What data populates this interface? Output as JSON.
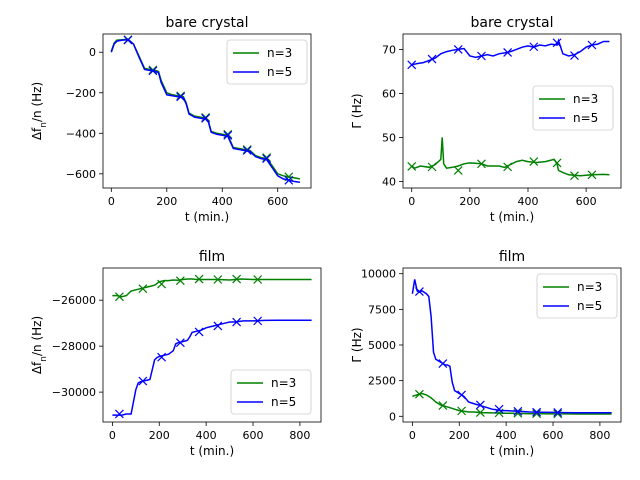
{
  "colors": {
    "n3": "#008000",
    "n5": "#0000ff"
  },
  "chart_data": [
    {
      "type": "line",
      "title": "bare crystal",
      "xlabel": "t (min.)",
      "ylabel_main": "Δf",
      "ylabel_sub": "n",
      "ylabel_tail": "/n (Hz)",
      "xlim": [
        -30,
        720
      ],
      "ylim": [
        -670,
        90
      ],
      "xticks": [
        0,
        200,
        400,
        600
      ],
      "yticks": [
        -600,
        -400,
        -200,
        0
      ],
      "legend_position": "upper right",
      "series": [
        {
          "name": "n=3",
          "color": "#008000",
          "x": [
            0,
            10,
            20,
            40,
            60,
            80,
            100,
            120,
            140,
            160,
            170,
            180,
            200,
            220,
            240,
            260,
            270,
            280,
            300,
            320,
            340,
            350,
            360,
            380,
            400,
            420,
            430,
            440,
            460,
            480,
            500,
            520,
            540,
            560,
            580,
            600,
            620,
            640,
            660,
            680
          ],
          "y": [
            5,
            45,
            60,
            62,
            65,
            40,
            -20,
            -80,
            -85,
            -90,
            -95,
            -140,
            -200,
            -210,
            -215,
            -220,
            -250,
            -300,
            -315,
            -320,
            -325,
            -340,
            -390,
            -400,
            -405,
            -410,
            -440,
            -470,
            -475,
            -480,
            -485,
            -510,
            -520,
            -525,
            -560,
            -600,
            -610,
            -615,
            -620,
            -625
          ],
          "markers_x": [
            60,
            150,
            250,
            340,
            420,
            490,
            560,
            640
          ],
          "markers_y": [
            62,
            -87,
            -215,
            -322,
            -405,
            -480,
            -520,
            -615
          ]
        },
        {
          "name": "n=5",
          "color": "#0000ff",
          "x": [
            0,
            10,
            20,
            40,
            60,
            80,
            100,
            120,
            140,
            160,
            170,
            180,
            200,
            220,
            240,
            260,
            270,
            280,
            300,
            320,
            340,
            350,
            360,
            380,
            400,
            420,
            430,
            440,
            460,
            480,
            500,
            520,
            540,
            560,
            580,
            600,
            620,
            640,
            660,
            680
          ],
          "y": [
            0,
            40,
            55,
            60,
            62,
            40,
            -25,
            -85,
            -90,
            -95,
            -100,
            -150,
            -210,
            -215,
            -220,
            -225,
            -255,
            -305,
            -320,
            -325,
            -330,
            -345,
            -395,
            -405,
            -410,
            -415,
            -445,
            -475,
            -480,
            -485,
            -490,
            -515,
            -525,
            -530,
            -570,
            -610,
            -625,
            -632,
            -638,
            -642
          ],
          "markers_x": [
            60,
            150,
            250,
            340,
            420,
            490,
            560,
            640
          ],
          "markers_y": [
            60,
            -92,
            -220,
            -326,
            -410,
            -485,
            -525,
            -632
          ]
        }
      ]
    },
    {
      "type": "line",
      "title": "bare crystal",
      "xlabel": "t (min.)",
      "ylabel_main": "Γ (Hz)",
      "xlim": [
        -30,
        720
      ],
      "ylim": [
        38.5,
        73.5
      ],
      "xticks": [
        0,
        200,
        400,
        600
      ],
      "yticks": [
        40,
        50,
        60,
        70
      ],
      "legend_position": "center right",
      "series": [
        {
          "name": "n=3",
          "color": "#008000",
          "x": [
            0,
            10,
            30,
            60,
            80,
            100,
            105,
            110,
            120,
            140,
            160,
            180,
            200,
            240,
            260,
            300,
            320,
            360,
            380,
            400,
            430,
            460,
            490,
            500,
            505,
            520,
            540,
            580,
            620,
            660,
            680
          ],
          "y": [
            43.5,
            43,
            43.5,
            43.2,
            43.8,
            45,
            50,
            44,
            43,
            43.2,
            43.5,
            44,
            44.2,
            44,
            43.5,
            43.5,
            43.2,
            44.5,
            44.8,
            44.5,
            44.3,
            44.5,
            45,
            44,
            42.5,
            42,
            41.5,
            41.3,
            41.5,
            41.6,
            41.5
          ],
          "markers_x": [
            0,
            70,
            160,
            240,
            330,
            420,
            500,
            560,
            620
          ],
          "markers_y": [
            43.4,
            43.3,
            42.5,
            44.0,
            43.3,
            44.5,
            44.2,
            41.3,
            41.5
          ]
        },
        {
          "name": "n=5",
          "color": "#0000ff",
          "x": [
            0,
            20,
            40,
            60,
            80,
            100,
            120,
            140,
            160,
            180,
            200,
            220,
            240,
            260,
            280,
            300,
            320,
            340,
            360,
            380,
            400,
            420,
            440,
            460,
            480,
            500,
            505,
            520,
            540,
            560,
            580,
            600,
            620,
            640,
            660,
            680
          ],
          "y": [
            66.5,
            66.8,
            67,
            67.5,
            68,
            69,
            69.5,
            69.8,
            70,
            70.2,
            68.5,
            68.2,
            68.5,
            68.8,
            68.5,
            69,
            69.2,
            69.5,
            70,
            70.5,
            70.8,
            70.5,
            71,
            70.8,
            71.2,
            71,
            72,
            69,
            68.5,
            68.8,
            69.5,
            70.5,
            71,
            71.2,
            71.8,
            71.8
          ],
          "markers_x": [
            0,
            70,
            160,
            240,
            330,
            420,
            500,
            560,
            620
          ],
          "markers_y": [
            66.5,
            67.8,
            70,
            68.5,
            69.3,
            70.6,
            71.5,
            68.6,
            71.0
          ]
        }
      ]
    },
    {
      "type": "line",
      "title": "film",
      "xlabel": "t (min.)",
      "ylabel_main": "Δf",
      "ylabel_sub": "n",
      "ylabel_tail": "/n (Hz)",
      "xlim": [
        -40,
        890
      ],
      "ylim": [
        -31300,
        -24600
      ],
      "xticks": [
        0,
        200,
        400,
        600,
        800
      ],
      "yticks": [
        -30000,
        -28000,
        -26000
      ],
      "legend_position": "lower right",
      "series": [
        {
          "name": "n=3",
          "color": "#008000",
          "x": [
            0,
            20,
            40,
            60,
            80,
            100,
            120,
            140,
            160,
            180,
            200,
            220,
            240,
            260,
            280,
            300,
            320,
            340,
            360,
            380,
            400,
            450,
            500,
            550,
            600,
            650,
            700,
            750,
            800,
            850
          ],
          "y": [
            -25800,
            -25800,
            -25850,
            -25800,
            -25600,
            -25550,
            -25500,
            -25450,
            -25400,
            -25350,
            -25200,
            -25150,
            -25150,
            -25120,
            -25130,
            -25100,
            -25080,
            -25080,
            -25100,
            -25100,
            -25100,
            -25100,
            -25120,
            -25080,
            -25100,
            -25100,
            -25100,
            -25100,
            -25100,
            -25100
          ],
          "markers_x": [
            30,
            130,
            210,
            290,
            370,
            450,
            530,
            620
          ],
          "markers_y": [
            -25850,
            -25500,
            -25300,
            -25150,
            -25080,
            -25100,
            -25080,
            -25100
          ]
        },
        {
          "name": "n=5",
          "color": "#0000ff",
          "x": [
            0,
            20,
            40,
            60,
            80,
            100,
            110,
            120,
            140,
            160,
            180,
            190,
            200,
            220,
            240,
            260,
            270,
            280,
            300,
            320,
            330,
            340,
            360,
            380,
            400,
            420,
            440,
            460,
            480,
            500,
            520,
            560,
            600,
            650,
            700,
            750,
            800,
            850
          ],
          "y": [
            -31000,
            -31000,
            -31000,
            -30950,
            -30950,
            -29900,
            -29600,
            -29550,
            -29500,
            -29450,
            -28600,
            -28500,
            -28450,
            -28400,
            -28350,
            -28200,
            -27900,
            -27850,
            -27800,
            -27750,
            -27600,
            -27400,
            -27350,
            -27300,
            -27200,
            -27150,
            -27100,
            -27050,
            -27000,
            -26950,
            -26950,
            -26900,
            -26900,
            -26880,
            -26870,
            -26870,
            -26870,
            -26870
          ],
          "markers_x": [
            30,
            130,
            210,
            290,
            370,
            450,
            530,
            620
          ],
          "markers_y": [
            -30950,
            -29520,
            -28480,
            -27850,
            -27380,
            -27120,
            -26950,
            -26900
          ]
        }
      ]
    },
    {
      "type": "line",
      "title": "film",
      "xlabel": "t (min.)",
      "ylabel_main": "Γ (Hz)",
      "xlim": [
        -40,
        890
      ],
      "ylim": [
        -400,
        10400
      ],
      "xticks": [
        0,
        200,
        400,
        600,
        800
      ],
      "yticks": [
        0,
        2500,
        5000,
        7500,
        10000
      ],
      "legend_position": "upper right",
      "series": [
        {
          "name": "n=3",
          "color": "#008000",
          "x": [
            0,
            20,
            40,
            60,
            80,
            100,
            120,
            140,
            160,
            180,
            200,
            220,
            240,
            260,
            280,
            300,
            320,
            360,
            400,
            450,
            500,
            550,
            600,
            650,
            700,
            750,
            800,
            850
          ],
          "y": [
            1400,
            1500,
            1600,
            1500,
            1300,
            1000,
            800,
            700,
            600,
            500,
            400,
            350,
            300,
            300,
            280,
            250,
            250,
            230,
            220,
            200,
            180,
            180,
            170,
            170,
            160,
            160,
            160,
            160
          ],
          "markers_x": [
            30,
            130,
            210,
            290,
            370,
            450,
            530,
            620
          ],
          "markers_y": [
            1550,
            750,
            380,
            260,
            240,
            210,
            180,
            170
          ]
        },
        {
          "name": "n=5",
          "color": "#0000ff",
          "x": [
            0,
            10,
            20,
            30,
            40,
            60,
            70,
            80,
            90,
            100,
            120,
            140,
            150,
            160,
            170,
            180,
            200,
            210,
            220,
            230,
            240,
            260,
            280,
            300,
            320,
            340,
            360,
            380,
            400,
            450,
            500,
            550,
            600,
            650,
            700,
            750,
            800,
            850
          ],
          "y": [
            8600,
            9600,
            8800,
            8700,
            8800,
            8600,
            8400,
            7000,
            4500,
            4000,
            3800,
            3600,
            3600,
            3500,
            2400,
            1800,
            1600,
            1500,
            1400,
            1200,
            1000,
            900,
            800,
            700,
            600,
            500,
            450,
            400,
            400,
            350,
            300,
            280,
            270,
            260,
            250,
            250,
            250,
            250
          ],
          "markers_x": [
            30,
            130,
            210,
            290,
            370,
            450,
            530,
            620
          ],
          "markers_y": [
            8750,
            3700,
            1500,
            800,
            500,
            350,
            290,
            270
          ]
        }
      ]
    }
  ]
}
